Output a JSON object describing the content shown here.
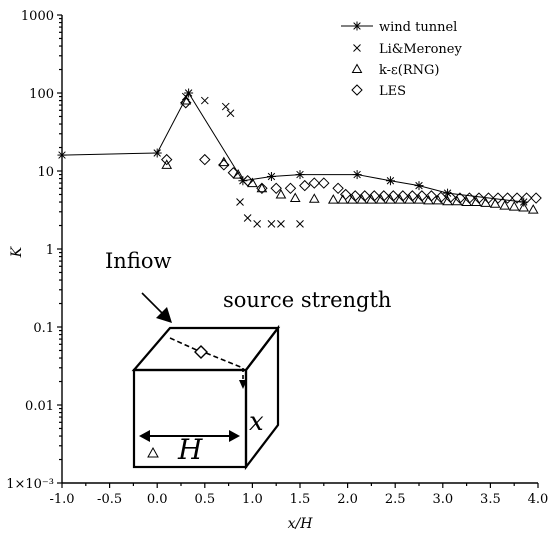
{
  "chart_data": {
    "type": "scatter",
    "title": "",
    "xlabel": "x/H",
    "ylabel": "K",
    "xlim": [
      -1.0,
      4.0
    ],
    "ylim": [
      0.001,
      1000
    ],
    "yscale": "log",
    "grid": false,
    "legend_position": "top-right",
    "x_ticks": [
      "-1.0",
      "-0.5",
      "0.0",
      "0.5",
      "1.0",
      "1.5",
      "2.0",
      "2.5",
      "3.0",
      "3.5",
      "4.0"
    ],
    "y_ticks": [
      "1×10⁻³",
      "0.01",
      "0.1",
      "1",
      "10",
      "100",
      "1000"
    ],
    "series": [
      {
        "name": "wind tunnel",
        "marker": "asterisk",
        "line": true,
        "x": [
          -1.0,
          0.0,
          0.33,
          0.9,
          1.2,
          1.5,
          2.1,
          2.45,
          2.75,
          3.05,
          3.85
        ],
        "y": [
          16,
          17,
          100,
          7.5,
          8.5,
          9,
          9,
          7.5,
          6.5,
          5.2,
          4
        ]
      },
      {
        "name": "Li&Meroney",
        "marker": "x",
        "line": false,
        "x": [
          0.3,
          0.5,
          0.72,
          0.77,
          0.87,
          0.95,
          1.05,
          1.2,
          1.3,
          1.5
        ],
        "y": [
          90,
          80,
          67,
          55,
          4,
          2.5,
          2.1,
          2.1,
          2.1,
          2.1
        ]
      },
      {
        "name": "k-ε(RNG)",
        "marker": "triangle",
        "line": false,
        "x": [
          0.1,
          0.3,
          0.7,
          0.85,
          1.0,
          1.1,
          1.3,
          1.45,
          1.65,
          1.85,
          1.95,
          2.05,
          2.15,
          2.25,
          2.35,
          2.45,
          2.55,
          2.65,
          2.75,
          2.85,
          2.95,
          3.05,
          3.15,
          3.25,
          3.35,
          3.45,
          3.55,
          3.65,
          3.75,
          3.85,
          3.95
        ],
        "y": [
          12,
          80,
          13,
          9,
          7,
          6,
          5,
          4.5,
          4.4,
          4.3,
          4.3,
          4.3,
          4.3,
          4.3,
          4.3,
          4.3,
          4.3,
          4.3,
          4.3,
          4.2,
          4.2,
          4.1,
          4.1,
          4.0,
          4.0,
          3.9,
          3.8,
          3.6,
          3.5,
          3.4,
          3.2
        ]
      },
      {
        "name": "LES",
        "marker": "diamond",
        "line": false,
        "x": [
          0.1,
          0.3,
          0.5,
          0.7,
          0.8,
          0.95,
          1.1,
          1.25,
          1.4,
          1.55,
          1.65,
          1.75,
          1.9,
          1.98,
          2.08,
          2.18,
          2.28,
          2.38,
          2.48,
          2.58,
          2.68,
          2.78,
          2.88,
          2.98,
          3.08,
          3.18,
          3.28,
          3.38,
          3.48,
          3.58,
          3.68,
          3.78,
          3.88,
          3.98
        ],
        "y": [
          14,
          75,
          14,
          12,
          9.5,
          7.5,
          6,
          6,
          6,
          6.5,
          7,
          7,
          6,
          5,
          4.8,
          4.8,
          4.8,
          4.8,
          4.8,
          4.8,
          4.8,
          4.8,
          4.8,
          4.6,
          4.6,
          4.5,
          4.5,
          4.5,
          4.5,
          4.5,
          4.5,
          4.5,
          4.5,
          4.5
        ]
      }
    ]
  },
  "annotations": {
    "inflow": "Infiow",
    "source_strength": "source strength",
    "h": "H",
    "x": "x"
  }
}
